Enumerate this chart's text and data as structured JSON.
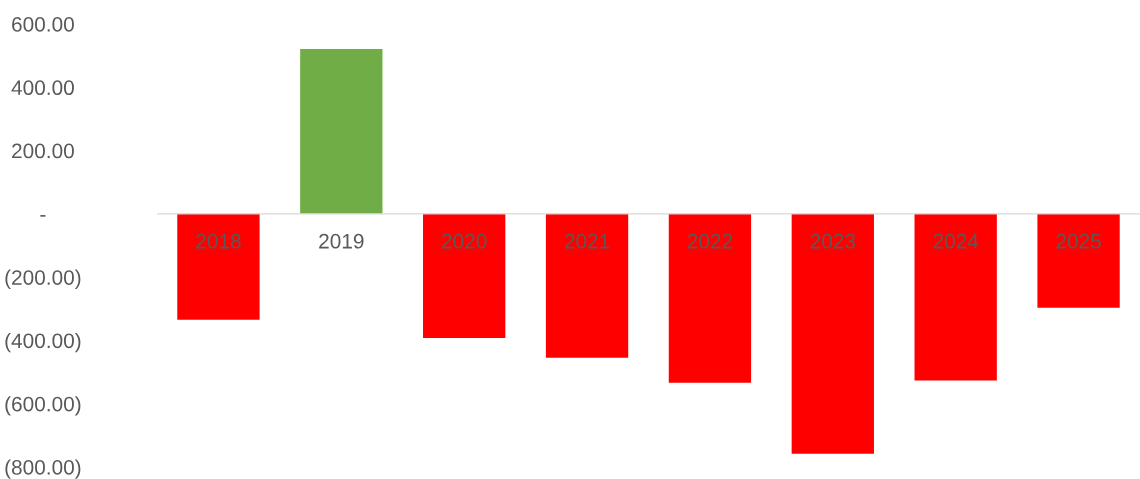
{
  "chart_data": {
    "type": "bar",
    "categories": [
      "2018",
      "2019",
      "2020",
      "2021",
      "2022",
      "2023",
      "2024",
      "2025"
    ],
    "values": [
      -335,
      521,
      -392,
      -455,
      -534,
      -758,
      -527,
      -297
    ],
    "colors": [
      "#ff0000",
      "#70ad47",
      "#ff0000",
      "#ff0000",
      "#ff0000",
      "#ff0000",
      "#ff0000",
      "#ff0000"
    ],
    "ylim": [
      -800,
      600
    ],
    "yticks": [
      {
        "value": 600,
        "label": "600.00"
      },
      {
        "value": 400,
        "label": "400.00"
      },
      {
        "value": 200,
        "label": "200.00"
      },
      {
        "value": 0,
        "label": "-"
      },
      {
        "value": -200,
        "label": "(200.00)"
      },
      {
        "value": -400,
        "label": "(400.00)"
      },
      {
        "value": -600,
        "label": "(600.00)"
      },
      {
        "value": -800,
        "label": "(800.00)"
      }
    ],
    "grid": false
  }
}
